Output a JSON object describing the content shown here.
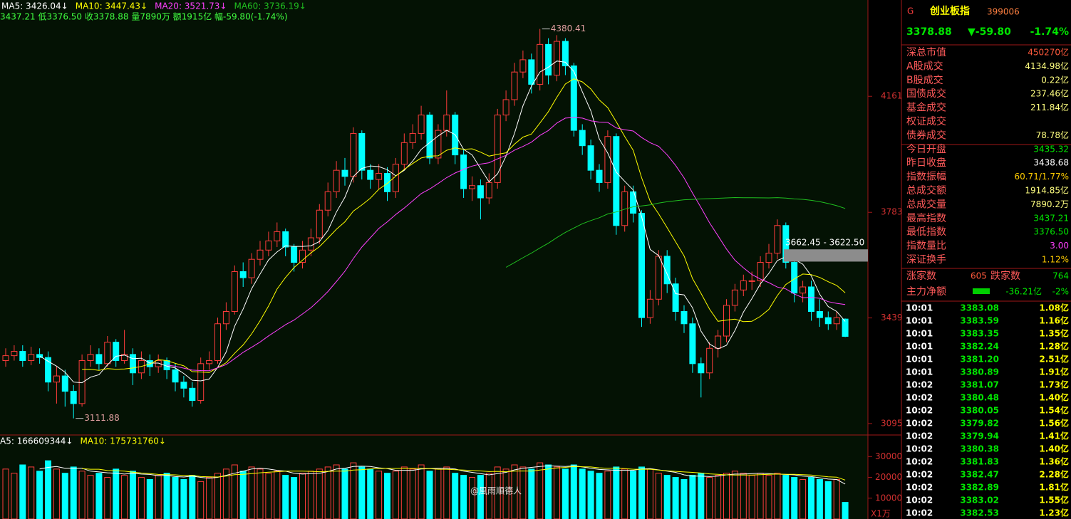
{
  "chart_data": [
    {
      "type": "candlestick",
      "legend": [
        {
          "label": "MA5: 3426.04↓",
          "color": "#ffffff"
        },
        {
          "label": "MA10: 3447.43↓",
          "color": "#ffff00"
        },
        {
          "label": "MA20: 3521.73↓",
          "color": "#ff40ff"
        },
        {
          "label": "MA60: 3736.19↓",
          "color": "#20c020"
        }
      ],
      "info": "3437.21 低3376.50 收3378.88 量7890万 额1915亿 幅-59.80(-1.74%)",
      "ma_periods": [
        5,
        10,
        20,
        60
      ],
      "up_color": "#ff3c3c",
      "down_color": "#00ffff",
      "open": [
        3300,
        3316,
        3330,
        3300,
        3320,
        3310,
        3230,
        3250,
        3200,
        3160,
        3300,
        3320,
        3290,
        3360,
        3300,
        3320,
        3260,
        3300,
        3280,
        3300,
        3270,
        3230,
        3210,
        3170,
        3290,
        3300,
        3420,
        3460,
        3590,
        3570,
        3630,
        3660,
        3690,
        3720,
        3670,
        3620,
        3660,
        3700,
        3790,
        3850,
        3920,
        3900,
        4040,
        3920,
        3890,
        3910,
        3850,
        3940,
        4010,
        4040,
        4100,
        3960,
        4050,
        4100,
        3970,
        3860,
        3870,
        3830,
        3880,
        4100,
        4150,
        4240,
        4280,
        4200,
        4330,
        4230,
        4340,
        4260,
        4050,
        4000,
        3920,
        3880,
        4030,
        3740,
        3850,
        3780,
        3440,
        3500,
        3640,
        3550,
        3460,
        3420,
        3290,
        3260,
        3340,
        3380,
        3480,
        3530,
        3560,
        3560,
        3620,
        3650,
        3740,
        3620,
        3520,
        3540,
        3460,
        3440,
        3420,
        3435.32
      ],
      "high": [
        3340,
        3350,
        3350,
        3345,
        3340,
        3330,
        3280,
        3270,
        3220,
        3320,
        3350,
        3340,
        3380,
        3370,
        3400,
        3340,
        3330,
        3320,
        3320,
        3310,
        3290,
        3250,
        3230,
        3310,
        3330,
        3440,
        3490,
        3610,
        3620,
        3650,
        3690,
        3720,
        3750,
        3730,
        3680,
        3690,
        3730,
        3810,
        3880,
        3950,
        3960,
        4060,
        4050,
        3940,
        3940,
        3930,
        3960,
        4040,
        4070,
        4130,
        4110,
        4070,
        4180,
        4110,
        3990,
        3900,
        3890,
        3910,
        4120,
        4180,
        4270,
        4310,
        4300,
        4380.41,
        4350,
        4360,
        4350,
        4270,
        4070,
        4020,
        3940,
        4050,
        4040,
        3870,
        3870,
        3790,
        3530,
        3660,
        3660,
        3570,
        3480,
        3440,
        3310,
        3360,
        3400,
        3500,
        3550,
        3580,
        3590,
        3640,
        3680,
        3760,
        3750,
        3640,
        3560,
        3560,
        3500,
        3460,
        3460,
        3437.21
      ],
      "low": [
        3280,
        3300,
        3280,
        3285,
        3290,
        3200,
        3160,
        3150,
        3111.88,
        3150,
        3280,
        3270,
        3280,
        3280,
        3290,
        3220,
        3240,
        3250,
        3260,
        3240,
        3200,
        3180,
        3150,
        3160,
        3270,
        3290,
        3400,
        3450,
        3540,
        3550,
        3610,
        3640,
        3670,
        3640,
        3590,
        3600,
        3640,
        3680,
        3770,
        3830,
        3870,
        3880,
        3890,
        3860,
        3860,
        3820,
        3830,
        3920,
        3990,
        4020,
        3940,
        3940,
        4030,
        3940,
        3830,
        3820,
        3760,
        3810,
        3860,
        4080,
        4130,
        4220,
        4170,
        4180,
        4200,
        4210,
        4230,
        4030,
        3970,
        3890,
        3850,
        3860,
        3710,
        3720,
        3750,
        3410,
        3420,
        3480,
        3520,
        3430,
        3390,
        3260,
        3180,
        3240,
        3310,
        3360,
        3460,
        3510,
        3530,
        3540,
        3600,
        3630,
        3600,
        3490,
        3490,
        3430,
        3410,
        3400,
        3400,
        3376.5
      ],
      "close": [
        3316,
        3330,
        3300,
        3320,
        3310,
        3230,
        3250,
        3200,
        3160,
        3300,
        3320,
        3290,
        3360,
        3300,
        3320,
        3260,
        3300,
        3280,
        3300,
        3270,
        3230,
        3210,
        3170,
        3290,
        3300,
        3420,
        3460,
        3590,
        3570,
        3630,
        3660,
        3690,
        3720,
        3670,
        3620,
        3660,
        3700,
        3790,
        3850,
        3920,
        3900,
        4040,
        3920,
        3890,
        3910,
        3850,
        3940,
        4010,
        4040,
        4100,
        3960,
        4050,
        4100,
        3970,
        3860,
        3870,
        3830,
        3880,
        4100,
        4150,
        4240,
        4280,
        4200,
        4330,
        4230,
        4340,
        4260,
        4050,
        4000,
        3920,
        3880,
        4030,
        3740,
        3850,
        3780,
        3440,
        3500,
        3640,
        3550,
        3460,
        3420,
        3290,
        3260,
        3340,
        3380,
        3480,
        3530,
        3560,
        3560,
        3620,
        3650,
        3740,
        3620,
        3520,
        3540,
        3460,
        3440,
        3420,
        3440,
        3378.88
      ],
      "ylim": [
        3060,
        4470
      ],
      "yticks": [
        3095,
        3439,
        3783,
        4161
      ],
      "annotations": [
        4380.41,
        3111.88
      ],
      "range_box": {
        "label": "3662.45 - 3622.50",
        "from": 3662.45,
        "to": 3622.5
      }
    },
    {
      "type": "volume_bar",
      "legend": [
        {
          "label": "A5: 166609344↓",
          "color": "#ffffff"
        },
        {
          "label": "MA10: 175731760↓",
          "color": "#ffff00"
        }
      ],
      "ma_periods": [
        5,
        10
      ],
      "values": [
        24000,
        22000,
        26000,
        25000,
        23000,
        28000,
        24000,
        22000,
        25000,
        23000,
        21000,
        22000,
        20000,
        24000,
        21000,
        23000,
        20000,
        19000,
        21000,
        22000,
        20000,
        19000,
        21000,
        18000,
        20000,
        22000,
        24000,
        26000,
        23000,
        25000,
        24000,
        22000,
        23000,
        21000,
        20000,
        22000,
        23000,
        24000,
        25000,
        26000,
        24000,
        27000,
        25000,
        24000,
        23000,
        22000,
        23000,
        25000,
        24000,
        26000,
        23000,
        24000,
        25000,
        22000,
        21000,
        20000,
        21000,
        22000,
        25000,
        24000,
        26000,
        25000,
        24000,
        27000,
        26000,
        25000,
        24000,
        26000,
        24000,
        23000,
        22000,
        23000,
        25000,
        24000,
        23000,
        25000,
        24000,
        22000,
        21000,
        20000,
        19000,
        21000,
        22000,
        20000,
        21000,
        22000,
        23000,
        22000,
        21000,
        22000,
        21000,
        22000,
        21000,
        20000,
        19000,
        20000,
        19000,
        18000,
        19000,
        8000
      ],
      "ylim": [
        0,
        39000
      ],
      "yticks": [
        10000,
        20000,
        30000
      ],
      "unit": "X1万"
    }
  ],
  "panel": {
    "mark": "G",
    "name": "创业板指",
    "code": "399006",
    "price": "3378.88",
    "change": "▼-59.80",
    "pct": "-1.74%",
    "stats": [
      {
        "label": "深总市值",
        "value": "450270亿",
        "color": "#ff5a3c"
      },
      {
        "label": "A股成交",
        "value": "4134.98亿",
        "color": "#ffff80"
      },
      {
        "label": "B股成交",
        "value": "0.22亿",
        "color": "#ffff80"
      },
      {
        "label": "国债成交",
        "value": "237.46亿",
        "color": "#ffff80"
      },
      {
        "label": "基金成交",
        "value": "211.84亿",
        "color": "#ffff80"
      },
      {
        "label": "权证成交"
      },
      {
        "label": "债券成交",
        "value": "78.78亿",
        "color": "#ffff80"
      },
      {
        "label": "今日开盘",
        "value": "3435.32",
        "color": "#00e600"
      },
      {
        "label": "昨日收盘",
        "value": "3438.68",
        "color": "#ffffff"
      },
      {
        "label": "指数振幅",
        "value": "60.71/1.77%",
        "color": "#ffcc00"
      },
      {
        "label": "总成交额",
        "value": "1914.85亿",
        "color": "#ffff80"
      },
      {
        "label": "总成交量",
        "value": "7890.2万",
        "color": "#ffff80"
      },
      {
        "label": "最高指数",
        "value": "3437.21",
        "color": "#00e600"
      },
      {
        "label": "最低指数",
        "value": "3376.50",
        "color": "#00e600"
      },
      {
        "label": "指数量比",
        "value": "3.00",
        "color": "#ff40ff"
      },
      {
        "label": "深证换手",
        "value": "1.12%",
        "color": "#ffcc00"
      }
    ],
    "up_label": "涨家数",
    "up": "605",
    "down_label": "跌家数",
    "down": "764",
    "flow_label": "主力净额",
    "flow": "-36.21亿",
    "flow_pct": "-2%",
    "ticks": [
      [
        "10:01",
        "3383.08",
        "1.08亿"
      ],
      [
        "10:01",
        "3383.59",
        "1.16亿"
      ],
      [
        "10:01",
        "3383.35",
        "1.35亿"
      ],
      [
        "10:01",
        "3382.24",
        "1.28亿"
      ],
      [
        "10:01",
        "3381.20",
        "2.51亿"
      ],
      [
        "10:01",
        "3380.89",
        "1.91亿"
      ],
      [
        "10:02",
        "3381.07",
        "1.73亿"
      ],
      [
        "10:02",
        "3380.48",
        "1.40亿"
      ],
      [
        "10:02",
        "3380.05",
        "1.54亿"
      ],
      [
        "10:02",
        "3379.82",
        "1.56亿"
      ],
      [
        "10:02",
        "3379.94",
        "1.41亿"
      ],
      [
        "10:02",
        "3380.38",
        "1.40亿"
      ],
      [
        "10:02",
        "3381.83",
        "1.36亿"
      ],
      [
        "10:02",
        "3382.47",
        "2.28亿"
      ],
      [
        "10:02",
        "3382.89",
        "1.81亿"
      ],
      [
        "10:02",
        "3383.02",
        "1.55亿"
      ],
      [
        "10:02",
        "3382.53",
        "1.23亿"
      ]
    ]
  },
  "watermark": "@風雨順德人"
}
